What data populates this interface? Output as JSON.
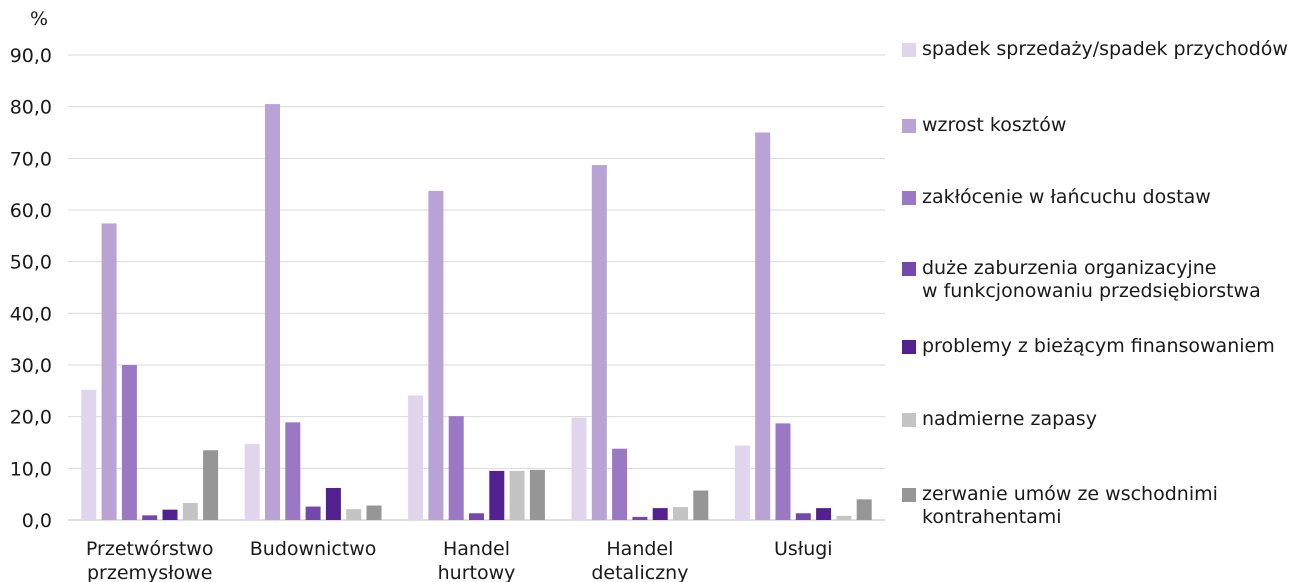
{
  "chart_data": {
    "type": "bar",
    "unit_label": "%",
    "categories": [
      "Przetwórstwo\nprzemysłowe",
      "Budownictwo",
      "Handel\nhurtowy",
      "Handel\ndetaliczny",
      "Usługi"
    ],
    "ylim": [
      0,
      90
    ],
    "yticks": [
      "0,0",
      "10,0",
      "20,0",
      "30,0",
      "40,0",
      "50,0",
      "60,0",
      "70,0",
      "80,0",
      "90,0"
    ],
    "grid": true,
    "legend_position": "right",
    "series": [
      {
        "name": "spadek sprzedaży/spadek przychodów",
        "color": "#e0d5ec",
        "values": [
          25.2,
          14.7,
          24.1,
          19.8,
          14.4
        ]
      },
      {
        "name": "wzrost kosztów",
        "color": "#b9a2d4",
        "values": [
          57.4,
          80.5,
          63.7,
          68.7,
          75.0
        ]
      },
      {
        "name": "zakłócenie w łańcuchu dostaw",
        "color": "#9a78c3",
        "values": [
          30.0,
          18.9,
          20.1,
          13.8,
          18.7
        ]
      },
      {
        "name": "duże zaburzenia organizacyjne\nw funkcjonowaniu przedsiębiorstwa",
        "color": "#7448ab",
        "values": [
          0.9,
          2.6,
          1.3,
          0.6,
          1.3
        ]
      },
      {
        "name": "problemy z bieżącym finansowaniem",
        "color": "#52208f",
        "values": [
          2.0,
          6.2,
          9.5,
          2.3,
          2.3
        ]
      },
      {
        "name": "nadmierne zapasy",
        "color": "#c4c4c4",
        "values": [
          3.3,
          2.1,
          9.5,
          2.5,
          0.8
        ]
      },
      {
        "name": "zerwanie umów ze wschodnimi\nkontrahentami",
        "color": "#969696",
        "values": [
          13.5,
          2.8,
          9.7,
          5.7,
          4.0
        ]
      }
    ]
  }
}
